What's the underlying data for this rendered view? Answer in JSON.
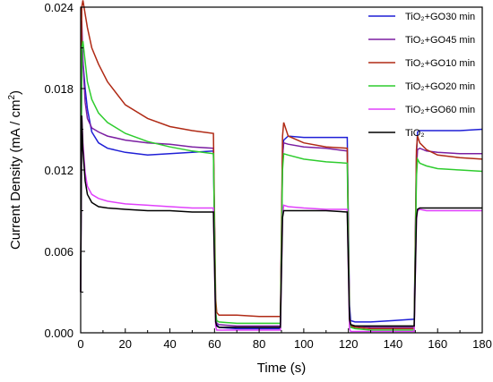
{
  "chart_data": {
    "type": "line",
    "xlabel": "Time (s)",
    "ylabel": "Current Density (mA / cm",
    "ylabel_sup": "2",
    "ylabel_close": ")",
    "xlim": [
      0,
      180
    ],
    "ylim": [
      0,
      0.024
    ],
    "x_ticks": [
      0,
      20,
      40,
      60,
      80,
      100,
      120,
      140,
      160,
      180
    ],
    "x_tick_labels": [
      "0",
      "20",
      "40",
      "60",
      "80",
      "100",
      "120",
      "140",
      "160",
      "180"
    ],
    "y_ticks": [
      0,
      0.006,
      0.012,
      0.018,
      0.024
    ],
    "y_tick_labels": [
      "0.000",
      "0.006",
      "0.012",
      "0.018",
      "0.024"
    ],
    "grid": false,
    "legend_position": "top-right",
    "series": [
      {
        "name": "TiO₂+GO30 min",
        "color": "#1f1fd6",
        "x": [
          0,
          0.5,
          1,
          2,
          3,
          5,
          8,
          12,
          20,
          30,
          40,
          50,
          59.5,
          60.5,
          61,
          62,
          70,
          80,
          89.5,
          90.5,
          91,
          93,
          100,
          110,
          119.5,
          120.5,
          121,
          123,
          130,
          140,
          149.5,
          150.5,
          151,
          152,
          155,
          160,
          170,
          180
        ],
        "y": [
          0.003,
          0.022,
          0.02,
          0.018,
          0.0165,
          0.0148,
          0.014,
          0.0136,
          0.0133,
          0.0131,
          0.0132,
          0.0133,
          0.0134,
          0.0015,
          0.0006,
          0.0004,
          0.0003,
          0.0003,
          0.0003,
          0.013,
          0.0142,
          0.0145,
          0.0144,
          0.0144,
          0.0144,
          0.002,
          0.0009,
          0.0008,
          0.0008,
          0.0009,
          0.001,
          0.013,
          0.0148,
          0.0149,
          0.0149,
          0.0149,
          0.0149,
          0.015
        ]
      },
      {
        "name": "TiO₂+GO45 min",
        "color": "#7b1fa2",
        "x": [
          0,
          0.5,
          1,
          2,
          3,
          5,
          8,
          12,
          20,
          30,
          40,
          50,
          59.5,
          60.5,
          61,
          62,
          70,
          80,
          89.5,
          90.5,
          91,
          93,
          100,
          110,
          119.5,
          120.5,
          121,
          123,
          130,
          140,
          149.5,
          150.5,
          151,
          152,
          155,
          160,
          170,
          180
        ],
        "y": [
          0.003,
          0.023,
          0.02,
          0.017,
          0.0158,
          0.0151,
          0.0148,
          0.0145,
          0.0142,
          0.014,
          0.0139,
          0.0137,
          0.0136,
          0.0012,
          0.0007,
          0.0006,
          0.0005,
          0.0005,
          0.0005,
          0.013,
          0.014,
          0.0139,
          0.0137,
          0.0136,
          0.0134,
          0.0012,
          0.0006,
          0.0005,
          0.0004,
          0.0004,
          0.0004,
          0.012,
          0.0135,
          0.0136,
          0.0134,
          0.0133,
          0.0132,
          0.0132
        ]
      },
      {
        "name": "TiO₂+GO10 min",
        "color": "#b02a15",
        "x": [
          0,
          0.5,
          1,
          2,
          3,
          5,
          8,
          12,
          20,
          30,
          40,
          50,
          59.5,
          60.5,
          61,
          62,
          70,
          80,
          89.5,
          90.5,
          91,
          93,
          100,
          110,
          119.5,
          120.5,
          121,
          123,
          130,
          140,
          149.5,
          150.5,
          151,
          152,
          155,
          160,
          170,
          180
        ],
        "y": [
          0.003,
          0.024,
          0.0245,
          0.0235,
          0.0225,
          0.021,
          0.0198,
          0.0185,
          0.0168,
          0.0158,
          0.0152,
          0.0149,
          0.0147,
          0.0025,
          0.0015,
          0.0013,
          0.0013,
          0.0012,
          0.0012,
          0.0145,
          0.0155,
          0.0145,
          0.014,
          0.0137,
          0.0136,
          0.0012,
          0.0005,
          0.0004,
          0.0003,
          0.0003,
          0.0003,
          0.0135,
          0.0145,
          0.014,
          0.0135,
          0.0131,
          0.0129,
          0.0128
        ]
      },
      {
        "name": "TiO₂+GO20 min",
        "color": "#2ecc2e",
        "x": [
          0,
          0.5,
          1,
          2,
          3,
          5,
          8,
          12,
          20,
          30,
          40,
          50,
          59.5,
          60.5,
          61,
          62,
          70,
          80,
          89.5,
          90.5,
          91,
          93,
          100,
          110,
          119.5,
          120.5,
          121,
          123,
          130,
          140,
          149.5,
          150.5,
          151,
          152,
          155,
          160,
          170,
          180
        ],
        "y": [
          0.003,
          0.021,
          0.0215,
          0.02,
          0.0185,
          0.0172,
          0.0162,
          0.0155,
          0.0147,
          0.0141,
          0.0137,
          0.0134,
          0.0132,
          0.0015,
          0.0009,
          0.0008,
          0.0007,
          0.0007,
          0.0007,
          0.012,
          0.0132,
          0.0131,
          0.0128,
          0.0126,
          0.0125,
          0.001,
          0.0004,
          0.0003,
          0.0002,
          0.0002,
          0.0002,
          0.0115,
          0.0128,
          0.0125,
          0.0123,
          0.0121,
          0.012,
          0.0119
        ]
      },
      {
        "name": "TiO₂+GO60 min",
        "color": "#e040fb",
        "x": [
          0,
          0.5,
          1,
          2,
          3,
          5,
          8,
          12,
          20,
          30,
          40,
          50,
          59.5,
          60.5,
          61,
          62,
          70,
          80,
          89.5,
          90.5,
          91,
          93,
          100,
          110,
          119.5,
          120.5,
          121,
          123,
          130,
          140,
          149.5,
          150.5,
          151,
          152,
          155,
          160,
          170,
          180
        ],
        "y": [
          0.003,
          0.016,
          0.014,
          0.0118,
          0.0108,
          0.0102,
          0.0099,
          0.0097,
          0.0095,
          0.0094,
          0.0093,
          0.0092,
          0.0092,
          0.0005,
          0.0002,
          0.0002,
          0.0002,
          0.0002,
          0.0002,
          0.0085,
          0.0094,
          0.0093,
          0.0092,
          0.0091,
          0.0091,
          0.0003,
          0.0001,
          0.0001,
          0.0001,
          0.0001,
          0.0001,
          0.0083,
          0.009,
          0.0091,
          0.009,
          0.009,
          0.009,
          0.009
        ]
      },
      {
        "name": "TiO₂",
        "color": "#000000",
        "x": [
          0,
          0.5,
          1,
          2,
          3,
          5,
          8,
          12,
          20,
          30,
          40,
          50,
          59.5,
          60.5,
          61,
          62,
          70,
          80,
          89.5,
          90.5,
          91,
          93,
          100,
          110,
          119.5,
          120.5,
          121,
          123,
          130,
          140,
          149.5,
          150.5,
          151,
          152,
          155,
          160,
          170,
          180
        ],
        "y": [
          0.003,
          0.016,
          0.0135,
          0.0112,
          0.0102,
          0.0096,
          0.0093,
          0.0092,
          0.0091,
          0.009,
          0.009,
          0.0089,
          0.0089,
          0.0008,
          0.0005,
          0.0004,
          0.0004,
          0.0004,
          0.0004,
          0.0085,
          0.009,
          0.009,
          0.009,
          0.009,
          0.0089,
          0.001,
          0.0006,
          0.0005,
          0.0005,
          0.0005,
          0.0005,
          0.0085,
          0.0091,
          0.0092,
          0.0092,
          0.0092,
          0.0092,
          0.0092
        ]
      }
    ]
  }
}
